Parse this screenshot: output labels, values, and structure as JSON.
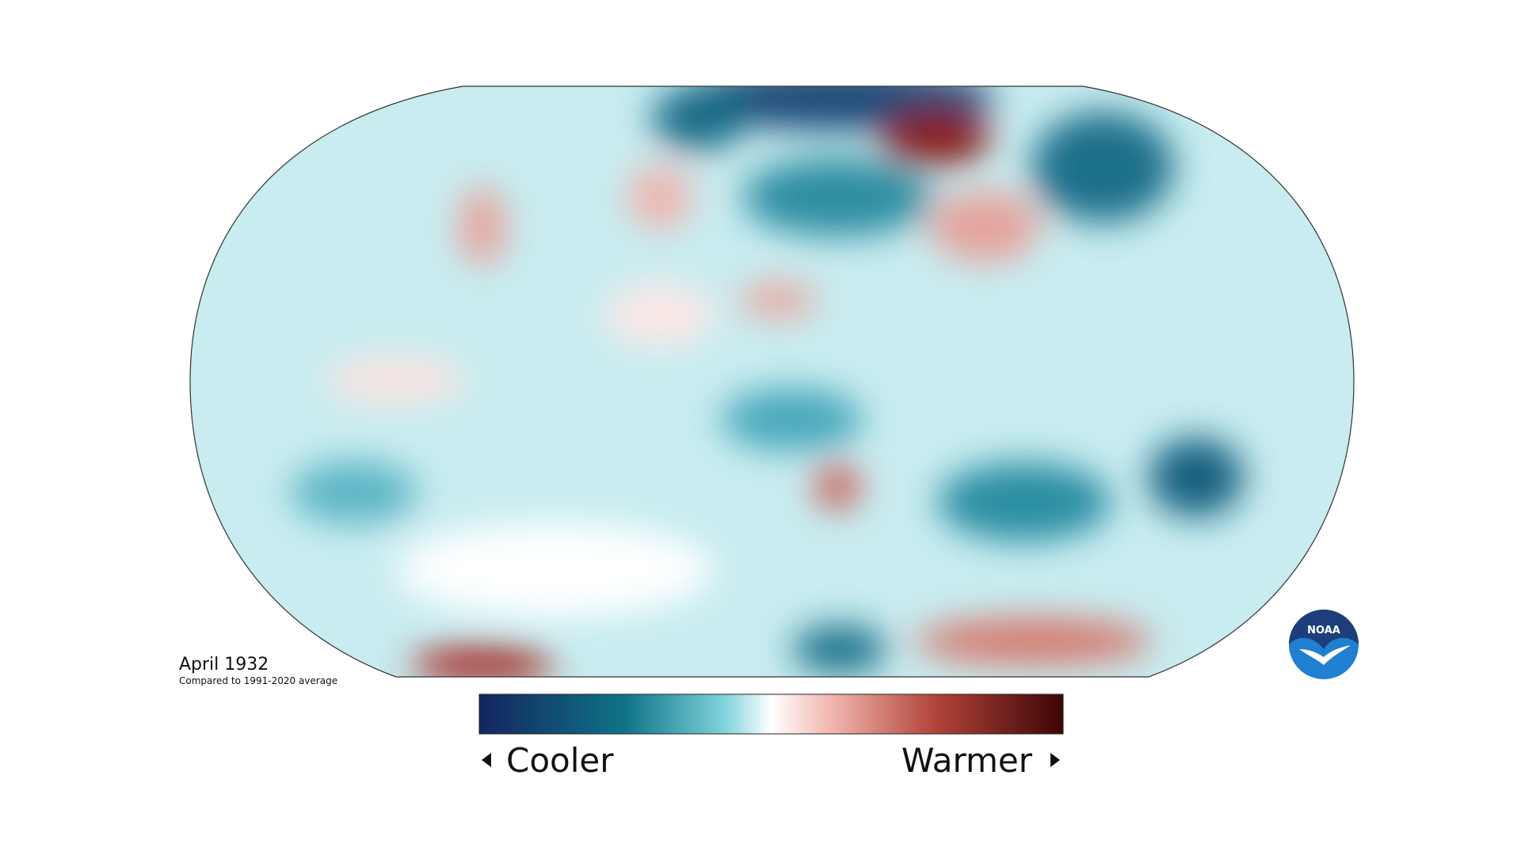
{
  "map": {
    "title": "April 1932",
    "subtitle": "Compared to 1991-2020 average",
    "legend": {
      "low": "Cooler",
      "high": "Warmer"
    },
    "logo": "NOAA"
  }
}
